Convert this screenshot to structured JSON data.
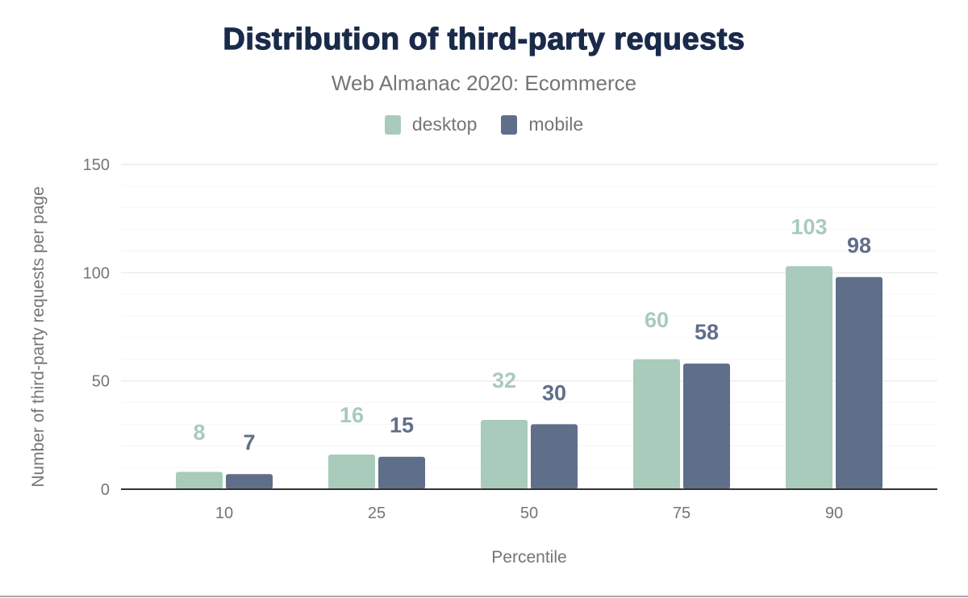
{
  "chart_data": {
    "type": "bar",
    "title": "Distribution of third-party requests",
    "subtitle": "Web Almanac 2020: Ecommerce",
    "xlabel": "Percentile",
    "ylabel": "Number of third-party requests per page",
    "categories": [
      "10",
      "25",
      "50",
      "75",
      "90"
    ],
    "series": [
      {
        "name": "desktop",
        "color": "#a8cbbb",
        "values": [
          8,
          16,
          32,
          60,
          103
        ]
      },
      {
        "name": "mobile",
        "color": "#5f6f8a",
        "values": [
          7,
          15,
          30,
          58,
          98
        ]
      }
    ],
    "ylim": [
      0,
      150
    ],
    "yticks": [
      0,
      50,
      100,
      150
    ],
    "grid": true,
    "legend": "top-center",
    "data_labels": true
  }
}
